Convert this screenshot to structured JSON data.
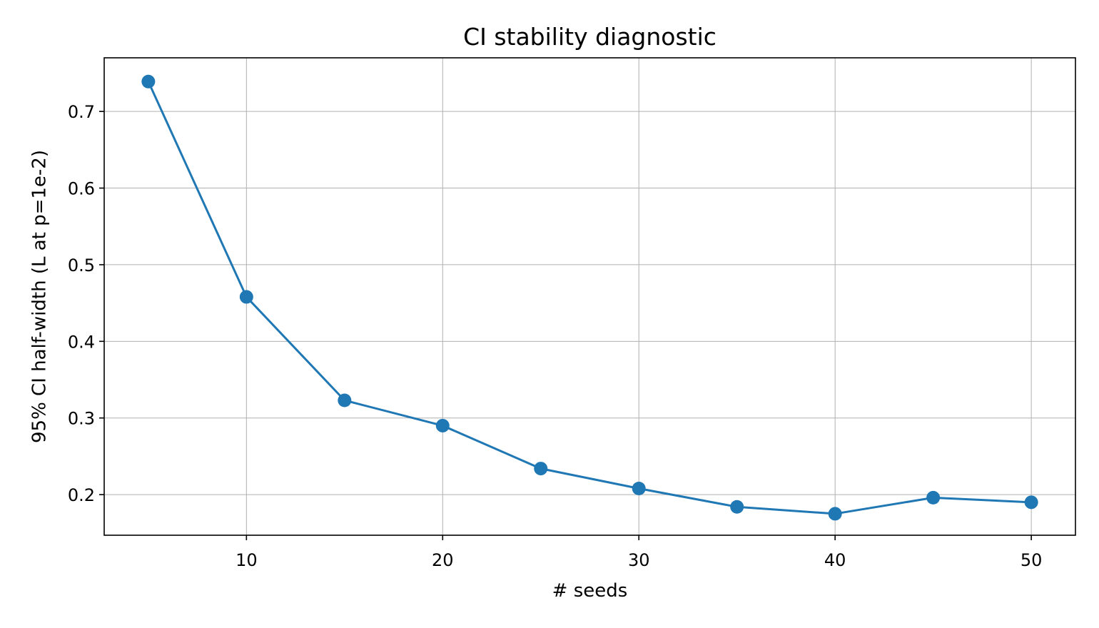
{
  "chart_data": {
    "type": "line",
    "title": "CI stability diagnostic",
    "xlabel": "# seeds",
    "ylabel": "95% CI half-width (L at p=1e-2)",
    "xlim": [
      2.75,
      52.25
    ],
    "ylim": [
      0.147,
      0.77
    ],
    "xticks": [
      10,
      20,
      30,
      40,
      50
    ],
    "xtick_labels": [
      "10",
      "20",
      "30",
      "40",
      "50"
    ],
    "yticks": [
      0.2,
      0.3,
      0.4,
      0.5,
      0.6,
      0.7
    ],
    "ytick_labels": [
      "0.2",
      "0.3",
      "0.4",
      "0.5",
      "0.6",
      "0.7"
    ],
    "grid": true,
    "series": [
      {
        "color": "#1f77b4",
        "marker": "circle",
        "x": [
          5,
          10,
          15,
          20,
          25,
          30,
          35,
          40,
          45,
          50
        ],
        "y": [
          0.739,
          0.458,
          0.323,
          0.29,
          0.234,
          0.208,
          0.184,
          0.175,
          0.196,
          0.19
        ]
      }
    ]
  }
}
